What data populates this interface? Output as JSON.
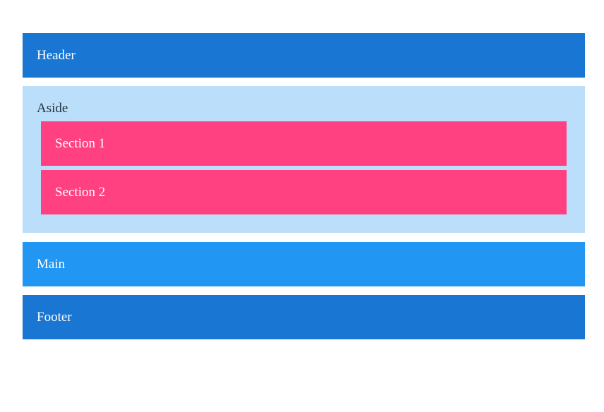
{
  "header": {
    "label": "Header"
  },
  "aside": {
    "label": "Aside",
    "sections": [
      {
        "label": "Section 1"
      },
      {
        "label": "Section 2"
      }
    ]
  },
  "main": {
    "label": "Main"
  },
  "footer": {
    "label": "Footer"
  },
  "colors": {
    "header": "#1976d2",
    "aside": "#bbdefb",
    "section": "#ff4081",
    "main": "#2196f3",
    "footer": "#1976d2"
  }
}
